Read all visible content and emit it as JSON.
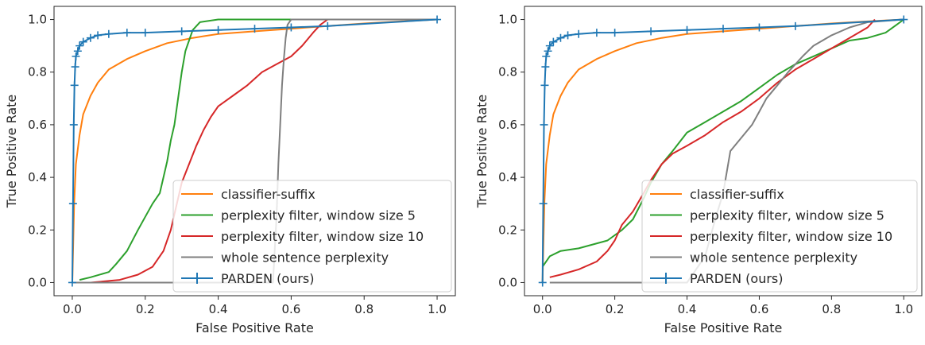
{
  "chart_data": [
    {
      "type": "line",
      "title": "",
      "xlabel": "False Positive Rate",
      "ylabel": "True Positive Rate",
      "xlim": [
        -0.05,
        1.05
      ],
      "ylim": [
        -0.05,
        1.05
      ],
      "xticks": [
        "0.0",
        "0.2",
        "0.4",
        "0.6",
        "0.8",
        "1.0"
      ],
      "yticks": [
        "0.0",
        "0.2",
        "0.4",
        "0.6",
        "0.8",
        "1.0"
      ],
      "grid": false,
      "legend_position": "lower-right",
      "series": [
        {
          "name": "classifier-suffix",
          "color": "#ff7f0e",
          "x": [
            0.0,
            0.005,
            0.01,
            0.02,
            0.03,
            0.05,
            0.07,
            0.1,
            0.15,
            0.2,
            0.26,
            0.33,
            0.4,
            0.5,
            0.6,
            0.7,
            0.8,
            0.9,
            1.0
          ],
          "y": [
            0.0,
            0.3,
            0.45,
            0.56,
            0.64,
            0.71,
            0.76,
            0.81,
            0.85,
            0.88,
            0.91,
            0.93,
            0.945,
            0.955,
            0.965,
            0.975,
            0.985,
            0.993,
            1.0
          ]
        },
        {
          "name": "perplexity filter, window size 5",
          "color": "#2ca02c",
          "x": [
            0.02,
            0.05,
            0.1,
            0.12,
            0.15,
            0.18,
            0.2,
            0.22,
            0.24,
            0.26,
            0.27,
            0.28,
            0.29,
            0.3,
            0.31,
            0.32,
            0.33,
            0.35,
            0.4,
            0.5,
            0.6
          ],
          "y": [
            0.01,
            0.02,
            0.04,
            0.07,
            0.12,
            0.2,
            0.25,
            0.3,
            0.34,
            0.46,
            0.54,
            0.6,
            0.7,
            0.8,
            0.88,
            0.92,
            0.96,
            0.99,
            1.0,
            1.0,
            1.0
          ]
        },
        {
          "name": "perplexity filter, window size 10",
          "color": "#d62728",
          "x": [
            0.0,
            0.05,
            0.13,
            0.18,
            0.22,
            0.25,
            0.27,
            0.28,
            0.29,
            0.3,
            0.32,
            0.34,
            0.36,
            0.38,
            0.4,
            0.44,
            0.48,
            0.52,
            0.56,
            0.6,
            0.63,
            0.66,
            0.68,
            0.7,
            0.72
          ],
          "y": [
            0.0,
            0.0,
            0.01,
            0.03,
            0.06,
            0.12,
            0.2,
            0.26,
            0.32,
            0.38,
            0.45,
            0.52,
            0.58,
            0.63,
            0.67,
            0.71,
            0.75,
            0.8,
            0.83,
            0.86,
            0.9,
            0.95,
            0.98,
            1.0,
            1.0
          ]
        },
        {
          "name": "whole sentence perplexity",
          "color": "#7f7f7f",
          "x": [
            0.0,
            0.55,
            0.56,
            0.565,
            0.57,
            0.575,
            0.58,
            0.585,
            0.59,
            0.6,
            0.7,
            0.8,
            1.0
          ],
          "y": [
            0.0,
            0.0,
            0.25,
            0.45,
            0.6,
            0.75,
            0.85,
            0.93,
            0.98,
            1.0,
            1.0,
            1.0,
            1.0
          ]
        },
        {
          "name": "PARDEN (ours)",
          "color": "#1f77b4",
          "marker": "+",
          "x": [
            0.0,
            0.002,
            0.004,
            0.006,
            0.008,
            0.01,
            0.015,
            0.02,
            0.03,
            0.05,
            0.07,
            0.1,
            0.15,
            0.2,
            0.3,
            0.4,
            0.5,
            0.6,
            0.7,
            1.0
          ],
          "y": [
            0.0,
            0.3,
            0.6,
            0.75,
            0.82,
            0.86,
            0.88,
            0.9,
            0.915,
            0.93,
            0.94,
            0.945,
            0.95,
            0.95,
            0.955,
            0.96,
            0.965,
            0.97,
            0.975,
            1.0
          ]
        }
      ]
    },
    {
      "type": "line",
      "title": "",
      "xlabel": "False Positive Rate",
      "ylabel": "True Positive Rate",
      "xlim": [
        -0.05,
        1.05
      ],
      "ylim": [
        -0.05,
        1.05
      ],
      "xticks": [
        "0.0",
        "0.2",
        "0.4",
        "0.6",
        "0.8",
        "1.0"
      ],
      "yticks": [
        "0.0",
        "0.2",
        "0.4",
        "0.6",
        "0.8",
        "1.0"
      ],
      "grid": false,
      "legend_position": "lower-right",
      "series": [
        {
          "name": "classifier-suffix",
          "color": "#ff7f0e",
          "x": [
            0.0,
            0.005,
            0.01,
            0.02,
            0.03,
            0.05,
            0.07,
            0.1,
            0.15,
            0.2,
            0.26,
            0.33,
            0.4,
            0.5,
            0.6,
            0.7,
            0.8,
            0.9,
            1.0
          ],
          "y": [
            0.0,
            0.3,
            0.45,
            0.56,
            0.64,
            0.71,
            0.76,
            0.81,
            0.85,
            0.88,
            0.91,
            0.93,
            0.945,
            0.955,
            0.965,
            0.975,
            0.985,
            0.993,
            1.0
          ]
        },
        {
          "name": "perplexity filter, window size 5",
          "color": "#2ca02c",
          "x": [
            0.0,
            0.02,
            0.05,
            0.1,
            0.18,
            0.22,
            0.25,
            0.28,
            0.3,
            0.33,
            0.36,
            0.4,
            0.45,
            0.5,
            0.55,
            0.6,
            0.65,
            0.7,
            0.75,
            0.8,
            0.85,
            0.9,
            0.95,
            0.98,
            1.0
          ],
          "y": [
            0.06,
            0.1,
            0.12,
            0.13,
            0.16,
            0.2,
            0.24,
            0.32,
            0.38,
            0.45,
            0.5,
            0.57,
            0.61,
            0.65,
            0.69,
            0.74,
            0.79,
            0.83,
            0.86,
            0.89,
            0.92,
            0.93,
            0.95,
            0.98,
            1.0
          ]
        },
        {
          "name": "perplexity filter, window size 10",
          "color": "#d62728",
          "x": [
            0.02,
            0.05,
            0.1,
            0.15,
            0.18,
            0.2,
            0.22,
            0.25,
            0.28,
            0.3,
            0.33,
            0.36,
            0.4,
            0.45,
            0.5,
            0.55,
            0.6,
            0.65,
            0.7,
            0.75,
            0.8,
            0.85,
            0.9,
            0.92
          ],
          "y": [
            0.02,
            0.03,
            0.05,
            0.08,
            0.12,
            0.16,
            0.22,
            0.27,
            0.34,
            0.39,
            0.45,
            0.49,
            0.52,
            0.56,
            0.61,
            0.65,
            0.7,
            0.76,
            0.81,
            0.85,
            0.89,
            0.93,
            0.97,
            1.0
          ]
        },
        {
          "name": "whole sentence perplexity",
          "color": "#7f7f7f",
          "x": [
            0.02,
            0.4,
            0.45,
            0.48,
            0.5,
            0.52,
            0.55,
            0.58,
            0.6,
            0.62,
            0.65,
            0.68,
            0.7,
            0.72,
            0.75,
            0.8,
            0.85,
            0.9,
            1.0
          ],
          "y": [
            0.0,
            0.0,
            0.1,
            0.25,
            0.34,
            0.5,
            0.55,
            0.6,
            0.65,
            0.7,
            0.75,
            0.8,
            0.83,
            0.86,
            0.9,
            0.94,
            0.97,
            0.99,
            1.0
          ]
        },
        {
          "name": "PARDEN (ours)",
          "color": "#1f77b4",
          "marker": "+",
          "x": [
            0.0,
            0.002,
            0.004,
            0.006,
            0.008,
            0.01,
            0.015,
            0.02,
            0.03,
            0.05,
            0.07,
            0.1,
            0.15,
            0.2,
            0.3,
            0.4,
            0.5,
            0.6,
            0.7,
            1.0
          ],
          "y": [
            0.0,
            0.3,
            0.6,
            0.75,
            0.82,
            0.86,
            0.88,
            0.9,
            0.915,
            0.93,
            0.94,
            0.945,
            0.95,
            0.95,
            0.955,
            0.96,
            0.965,
            0.97,
            0.975,
            1.0
          ]
        }
      ]
    }
  ]
}
